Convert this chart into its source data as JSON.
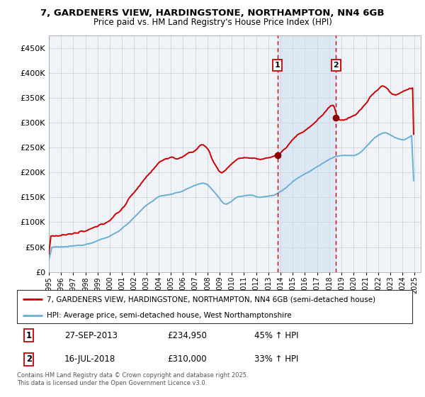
{
  "title": "7, GARDENERS VIEW, HARDINGSTONE, NORTHAMPTON, NN4 6GB",
  "subtitle": "Price paid vs. HM Land Registry's House Price Index (HPI)",
  "legend_line1": "7, GARDENERS VIEW, HARDINGSTONE, NORTHAMPTON, NN4 6GB (semi-detached house)",
  "legend_line2": "HPI: Average price, semi-detached house, West Northamptonshire",
  "footnote": "Contains HM Land Registry data © Crown copyright and database right 2025.\nThis data is licensed under the Open Government Licence v3.0.",
  "transaction1_date": "27-SEP-2013",
  "transaction1_price": 234950,
  "transaction1_hpi": "45% ↑ HPI",
  "transaction2_date": "16-JUL-2018",
  "transaction2_price": 310000,
  "transaction2_hpi": "33% ↑ HPI",
  "sale1_year": 2013.74,
  "sale2_year": 2018.54,
  "hpi_color": "#6baed6",
  "price_color": "#cc0000",
  "sale_dot_color": "#8b0000",
  "dashed_line_color": "#cc0000",
  "shade_color": "#dce9f5",
  "plot_bg_color": "#f0f4f8",
  "ylim": [
    0,
    475000
  ],
  "yticks": [
    0,
    50000,
    100000,
    150000,
    200000,
    250000,
    300000,
    350000,
    400000,
    450000
  ],
  "xlabel_years": [
    1995,
    1996,
    1997,
    1998,
    1999,
    2000,
    2001,
    2002,
    2003,
    2004,
    2005,
    2006,
    2007,
    2008,
    2009,
    2010,
    2011,
    2012,
    2013,
    2014,
    2015,
    2016,
    2017,
    2018,
    2019,
    2020,
    2021,
    2022,
    2023,
    2024,
    2025
  ]
}
